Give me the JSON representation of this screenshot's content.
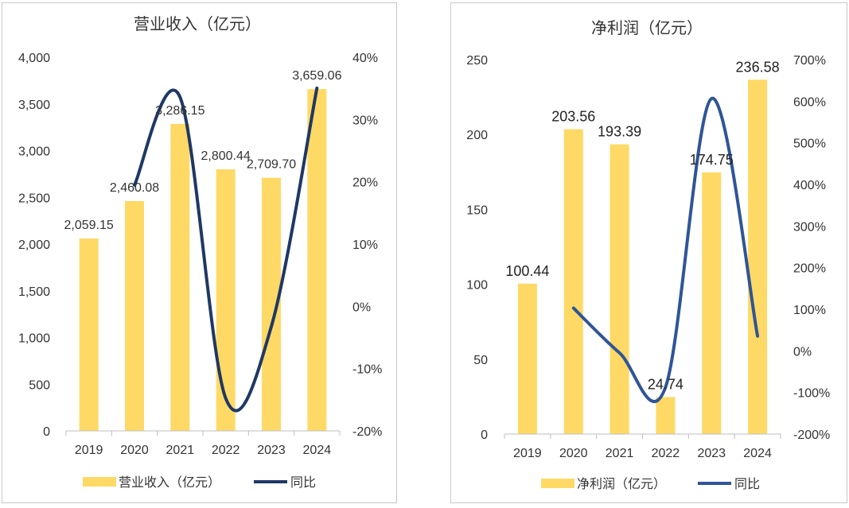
{
  "colors": {
    "bar": "#FFD966",
    "line": "#1F3864",
    "line_right": "#2F5597",
    "axis": "#bfbfbf",
    "text": "#333333"
  },
  "chart_data": [
    {
      "type": "bar",
      "title": "营业收入（亿元）",
      "categories": [
        "2019",
        "2020",
        "2021",
        "2022",
        "2023",
        "2024"
      ],
      "series": [
        {
          "name": "营业收入（亿元）",
          "kind": "bar",
          "axis": "left",
          "values": [
            2059.15,
            2460.08,
            3286.15,
            2800.44,
            2709.7,
            3659.06
          ]
        },
        {
          "name": "同比",
          "kind": "line",
          "axis": "right",
          "values": [
            null,
            19.47,
            33.58,
            -14.78,
            -3.24,
            35.04
          ]
        }
      ],
      "data_labels": [
        "2,059.15",
        "2,460.08",
        "3,286.15",
        "2,800.44",
        "2,709.70",
        "3,659.06"
      ],
      "y_left": {
        "min": 0,
        "max": 4000,
        "ticks": [
          0,
          500,
          1000,
          1500,
          2000,
          2500,
          3000,
          3500,
          4000
        ],
        "tick_labels": [
          "0",
          "500",
          "1,000",
          "1,500",
          "2,000",
          "2,500",
          "3,000",
          "3,500",
          "4,000"
        ]
      },
      "y_right": {
        "min": -20,
        "max": 40,
        "ticks": [
          -20,
          -10,
          0,
          10,
          20,
          30,
          40
        ],
        "tick_labels": [
          "-20%",
          "-10%",
          "0%",
          "10%",
          "20%",
          "30%",
          "40%"
        ]
      },
      "legend": {
        "position": "bottom",
        "items": [
          "营业收入（亿元）",
          "同比"
        ]
      }
    },
    {
      "type": "bar",
      "title": "净利润（亿元）",
      "categories": [
        "2019",
        "2020",
        "2021",
        "2022",
        "2023",
        "2024"
      ],
      "series": [
        {
          "name": "净利润（亿元）",
          "kind": "bar",
          "axis": "left",
          "values": [
            100.44,
            203.56,
            193.39,
            24.74,
            174.75,
            236.58
          ]
        },
        {
          "name": "同比",
          "kind": "line",
          "axis": "right",
          "values": [
            null,
            102.67,
            -5.0,
            -87.2,
            606.3,
            35.4
          ]
        }
      ],
      "data_labels": [
        "100.44",
        "203.56",
        "193.39",
        "24.74",
        "174.75",
        "236.58"
      ],
      "y_left": {
        "min": 0,
        "max": 250,
        "ticks": [
          0,
          50,
          100,
          150,
          200,
          250
        ],
        "tick_labels": [
          "0",
          "50",
          "100",
          "150",
          "200",
          "250"
        ]
      },
      "y_right": {
        "min": -200,
        "max": 700,
        "ticks": [
          -200,
          -100,
          0,
          100,
          200,
          300,
          400,
          500,
          600,
          700
        ],
        "tick_labels": [
          "-200%",
          "-100%",
          "0%",
          "100%",
          "200%",
          "300%",
          "400%",
          "500%",
          "600%",
          "700%"
        ]
      },
      "legend": {
        "position": "bottom",
        "items": [
          "净利润（亿元）",
          "同比"
        ]
      }
    }
  ]
}
